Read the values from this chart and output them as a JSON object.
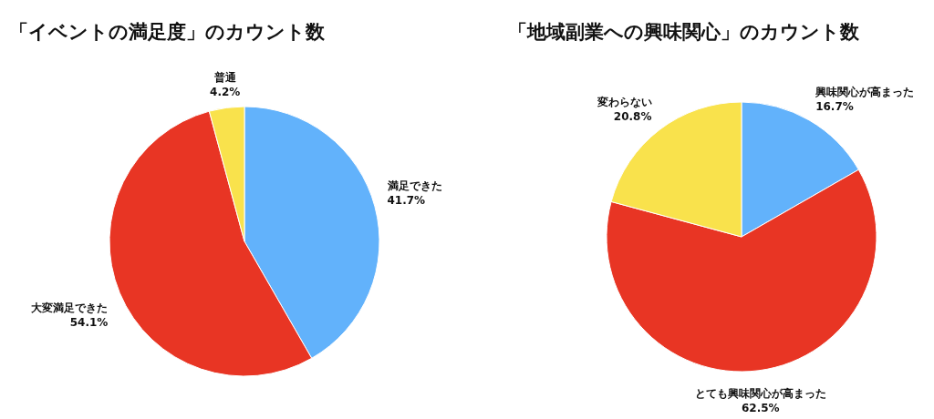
{
  "chart_data": [
    {
      "type": "pie",
      "title": "「イベントの満足度」のカウント数",
      "categories": [
        "満足できた",
        "大変満足できた",
        "普通"
      ],
      "values": [
        41.7,
        54.1,
        4.2
      ],
      "colors": [
        "#62b2fb",
        "#e83524",
        "#f9e24c"
      ],
      "value_labels": [
        "41.7%",
        "54.1%",
        "4.2%"
      ]
    },
    {
      "type": "pie",
      "title": "「地域副業への興味関心」のカウント数",
      "categories": [
        "興味関心が高まった",
        "とても興味関心が高まった",
        "変わらない"
      ],
      "values": [
        16.7,
        62.5,
        20.8
      ],
      "colors": [
        "#62b2fb",
        "#e83524",
        "#f9e24c"
      ],
      "value_labels": [
        "16.7%",
        "62.5%",
        "20.8%"
      ]
    }
  ]
}
